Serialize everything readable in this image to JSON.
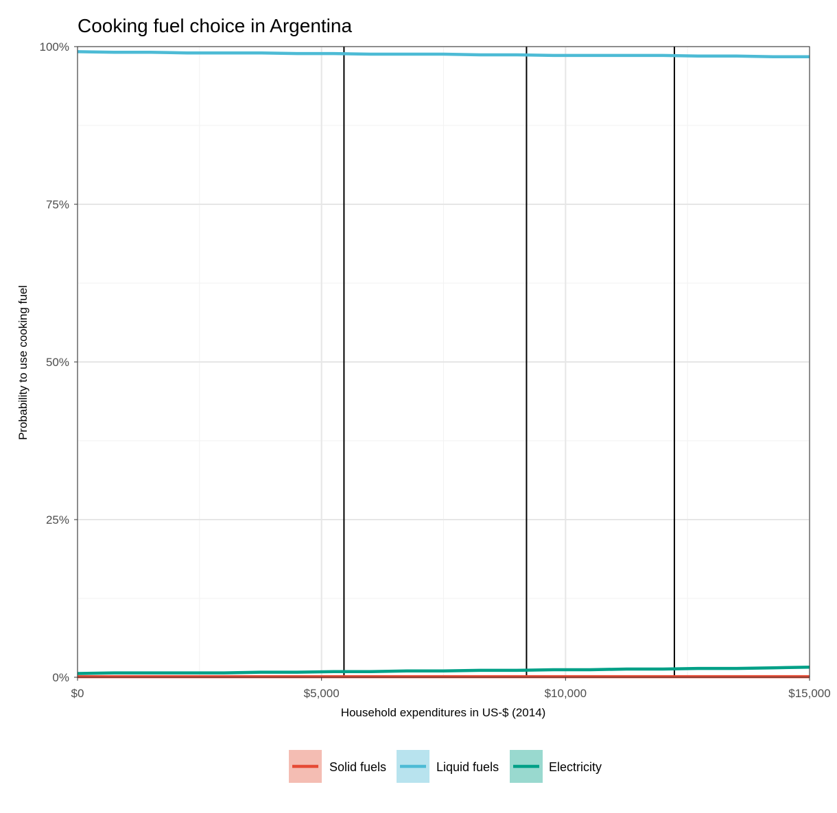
{
  "chart_data": {
    "type": "line",
    "title": "Cooking fuel choice in Argentina",
    "xlabel": "Household expenditures in US-$ (2014)",
    "ylabel": "Probability to use cooking fuel",
    "xlim": [
      0,
      15000
    ],
    "ylim": [
      0,
      1
    ],
    "x_ticks": [
      0,
      5000,
      10000,
      15000
    ],
    "x_tick_labels": [
      "$0",
      "$5,000",
      "$10,000",
      "$15,000"
    ],
    "y_ticks": [
      0,
      0.25,
      0.5,
      0.75,
      1
    ],
    "y_tick_labels": [
      "0%",
      "25%",
      "50%",
      "75%",
      "100%"
    ],
    "grid": true,
    "legend_position": "bottom",
    "vertical_lines": [
      5460,
      9200,
      12230
    ],
    "x": [
      0,
      750,
      1500,
      2250,
      3000,
      3750,
      4500,
      5250,
      6000,
      6750,
      7500,
      8250,
      9000,
      9750,
      10500,
      11250,
      12000,
      12750,
      13500,
      14250,
      15000
    ],
    "series": [
      {
        "name": "Solid fuels",
        "color": "#E64B35",
        "values": [
          0.001,
          0.001,
          0.001,
          0.001,
          0.001,
          0.001,
          0.001,
          0.001,
          0.001,
          0.001,
          0.001,
          0.001,
          0.001,
          0.001,
          0.001,
          0.001,
          0.001,
          0.001,
          0.001,
          0.001,
          0.001
        ]
      },
      {
        "name": "Liquid fuels",
        "color": "#4DBBD5",
        "values": [
          0.992,
          0.991,
          0.991,
          0.99,
          0.99,
          0.99,
          0.989,
          0.989,
          0.988,
          0.988,
          0.988,
          0.987,
          0.987,
          0.986,
          0.986,
          0.986,
          0.986,
          0.985,
          0.985,
          0.984,
          0.984
        ]
      },
      {
        "name": "Electricity",
        "color": "#00A087",
        "values": [
          0.006,
          0.007,
          0.007,
          0.007,
          0.007,
          0.008,
          0.008,
          0.009,
          0.009,
          0.01,
          0.01,
          0.011,
          0.011,
          0.012,
          0.012,
          0.013,
          0.013,
          0.014,
          0.014,
          0.015,
          0.016
        ]
      }
    ]
  }
}
